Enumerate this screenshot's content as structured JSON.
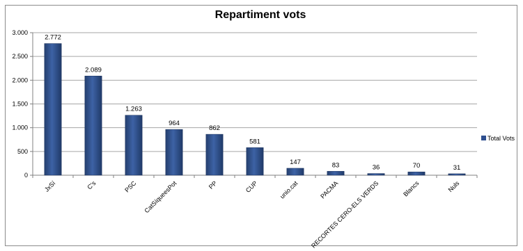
{
  "chart_data": {
    "type": "bar",
    "title": "Repartiment vots",
    "categories": [
      "JxSí",
      "C's",
      "PSC",
      "CatSíqueesPot",
      "PP",
      "CUP",
      "unio.cat",
      "PACMA",
      "RECORTES CERO-ELS VERDS",
      "Blancs",
      "Nuls"
    ],
    "series": [
      {
        "name": "Total Vots",
        "values": [
          2772,
          2089,
          1263,
          964,
          862,
          581,
          147,
          83,
          36,
          70,
          31
        ],
        "data_labels": [
          "2.772",
          "2.089",
          "1.263",
          "964",
          "862",
          "581",
          "147",
          "83",
          "36",
          "70",
          "31"
        ],
        "color": "#2f4f8f"
      }
    ],
    "ylim": [
      0,
      3000
    ],
    "yticks": [
      0,
      500,
      1000,
      1500,
      2000,
      2500,
      3000
    ],
    "ytick_labels": [
      "0",
      "500",
      "1.000",
      "1.500",
      "2.000",
      "2.500",
      "3.000"
    ],
    "grid": true,
    "legend_position": "right",
    "xlabel": "",
    "ylabel": ""
  }
}
